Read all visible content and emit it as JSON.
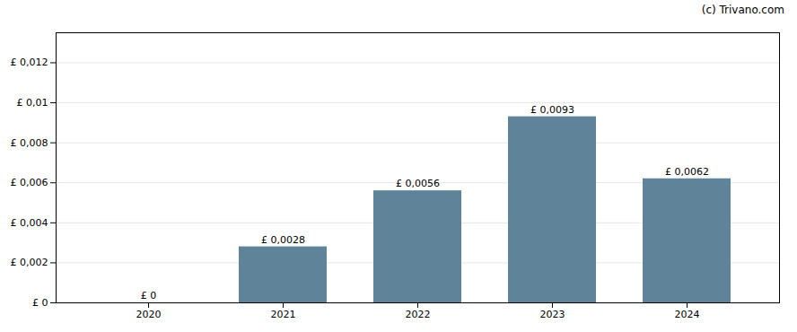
{
  "chart_data": {
    "type": "bar",
    "annotation": "(c) Trivano.com",
    "categories": [
      "2020",
      "2021",
      "2022",
      "2023",
      "2024"
    ],
    "values": [
      0.0,
      0.0028,
      0.0056,
      0.0093,
      0.0062
    ],
    "value_labels": [
      "£ 0",
      "£ 0,0028",
      "£ 0,0056",
      "£ 0,0093",
      "£ 0,0062"
    ],
    "data_labels": true,
    "color": "#5f8499",
    "ylim": [
      0,
      0.0135
    ],
    "yticks": [
      {
        "value": 0.0,
        "label": "£ 0"
      },
      {
        "value": 0.002,
        "label": "£ 0,002"
      },
      {
        "value": 0.004,
        "label": "£ 0,004"
      },
      {
        "value": 0.006,
        "label": "£ 0,006"
      },
      {
        "value": 0.008,
        "label": "£ 0,008"
      },
      {
        "value": 0.01,
        "label": "£ 0,01"
      },
      {
        "value": 0.012,
        "label": "£ 0,012"
      }
    ],
    "grid": true
  }
}
